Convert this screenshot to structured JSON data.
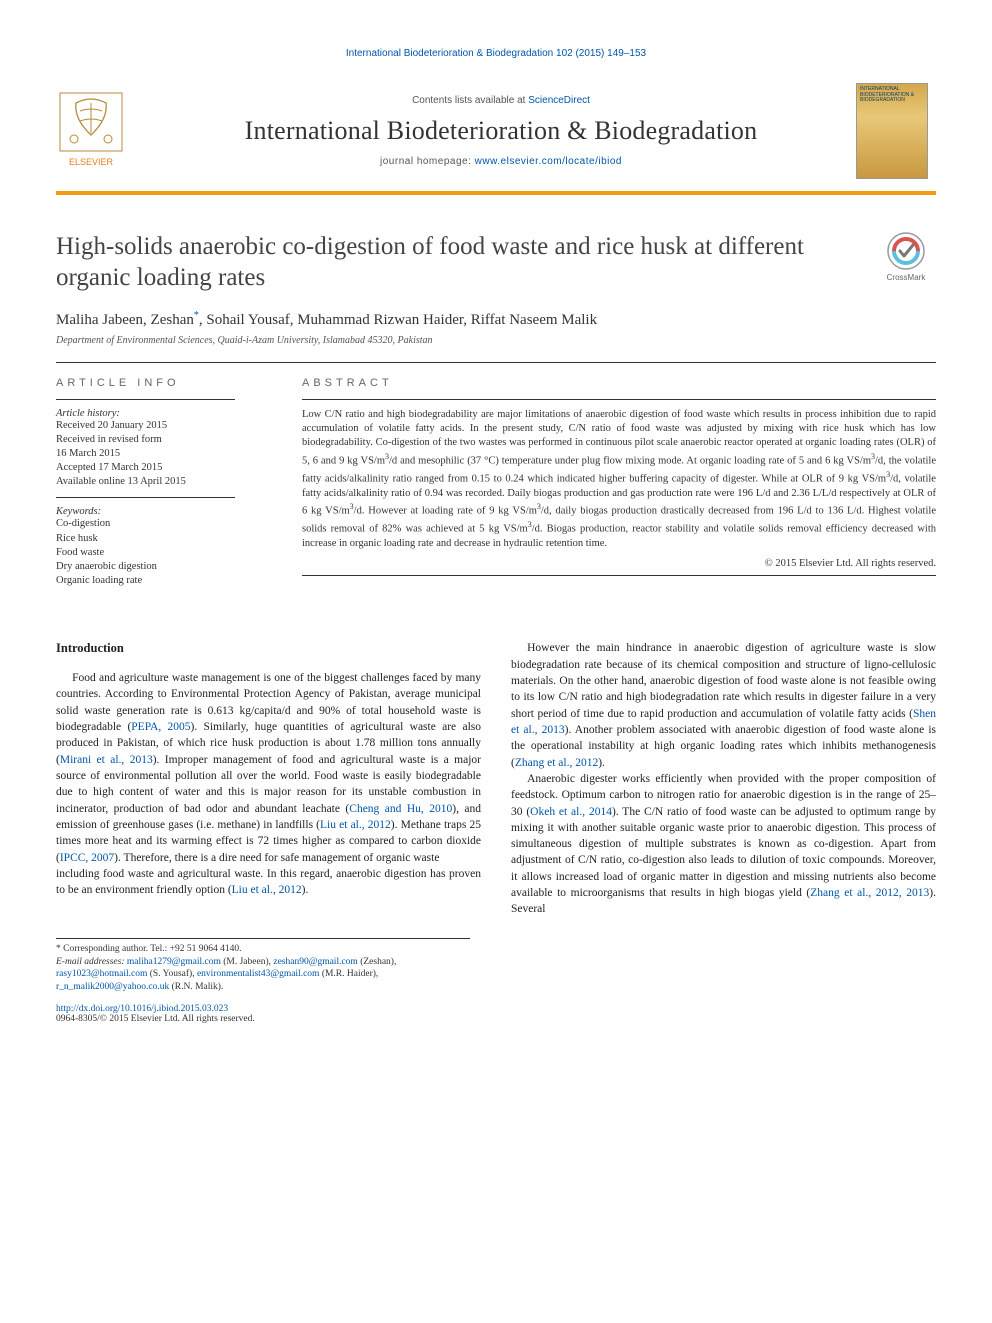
{
  "colors": {
    "link": "#0056a8",
    "accent_bar": "#f39c12",
    "text": "#333333",
    "muted": "#666666"
  },
  "typography": {
    "body_pt": 11.5,
    "abstract_pt": 10.5,
    "title_pt": 25,
    "journal_name_pt": 26
  },
  "running_head": "International Biodeterioration & Biodegradation 102 (2015) 149–153",
  "masthead": {
    "contents_prefix": "Contents lists available at ",
    "contents_link": "ScienceDirect",
    "journal": "International Biodeterioration & Biodegradation",
    "homepage_prefix": "journal homepage: ",
    "homepage_url": "www.elsevier.com/locate/ibiod",
    "cover_text": "INTERNATIONAL BIODETERIORATION & BIODEGRADATION"
  },
  "title": "High-solids anaerobic co-digestion of food waste and rice husk at different organic loading rates",
  "crossmark": "CrossMark",
  "authors_html": "Maliha Jabeen, Zeshan<sup>*</sup>, Sohail Yousaf, Muhammad Rizwan Haider, Riffat Naseem Malik",
  "affiliation": "Department of Environmental Sciences, Quaid-i-Azam University, Islamabad 45320, Pakistan",
  "article_info": {
    "label": "ARTICLE INFO",
    "history_label": "Article history:",
    "received": "Received 20 January 2015",
    "revised1": "Received in revised form",
    "revised2": "16 March 2015",
    "accepted": "Accepted 17 March 2015",
    "online": "Available online 13 April 2015",
    "kw_label": "Keywords:",
    "keywords": [
      "Co-digestion",
      "Rice husk",
      "Food waste",
      "Dry anaerobic digestion",
      "Organic loading rate"
    ]
  },
  "abstract": {
    "label": "ABSTRACT",
    "text_html": "Low C/N ratio and high biodegradability are major limitations of anaerobic digestion of food waste which results in process inhibition due to rapid accumulation of volatile fatty acids. In the present study, C/N ratio of food waste was adjusted by mixing with rice husk which has low biodegradability. Co-digestion of the two wastes was performed in continuous pilot scale anaerobic reactor operated at organic loading rates (OLR) of 5, 6 and 9 kg VS/m<sup>3</sup>/d and mesophilic (37 °C) temperature under plug flow mixing mode. At organic loading rate of 5 and 6 kg VS/m<sup>3</sup>/d, the volatile fatty acids/alkalinity ratio ranged from 0.15 to 0.24 which indicated higher buffering capacity of digester. While at OLR of 9 kg VS/m<sup>3</sup>/d, volatile fatty acids/alkalinity ratio of 0.94 was recorded. Daily biogas production and gas production rate were 196 L/d and 2.36 L/L/d respectively at OLR of 6 kg VS/m<sup>3</sup>/d. However at loading rate of 9 kg VS/m<sup>3</sup>/d, daily biogas production drastically decreased from 196 L/d to 136 L/d. Highest volatile solids removal of 82% was achieved at 5 kg VS/m<sup>3</sup>/d. Biogas production, reactor stability and volatile solids removal efficiency decreased with increase in organic loading rate and decrease in hydraulic retention time.",
    "copyright": "© 2015 Elsevier Ltd. All rights reserved."
  },
  "intro": {
    "heading": "Introduction",
    "p1_html": "Food and agriculture waste management is one of the biggest challenges faced by many countries. According to Environmental Protection Agency of Pakistan, average municipal solid waste generation rate is 0.613 kg/capita/d and 90% of total household waste is biodegradable (<a href='#' data-name='cite-pepa-2005' data-interactable='true'>PEPA, 2005</a>). Similarly, huge quantities of agricultural waste are also produced in Pakistan, of which rice husk production is about 1.78 million tons annually (<a href='#' data-name='cite-mirani-2013' data-interactable='true'>Mirani et al., 2013</a>). Improper management of food and agricultural waste is a major source of environmental pollution all over the world. Food waste is easily biodegradable due to high content of water and this is major reason for its unstable combustion in incinerator, production of bad odor and abundant leachate (<a href='#' data-name='cite-cheng-hu-2010' data-interactable='true'>Cheng and Hu, 2010</a>), and emission of greenhouse gases (i.e. methane) in landfills (<a href='#' data-name='cite-liu-2012a' data-interactable='true'>Liu et al., 2012</a>). Methane traps 25 times more heat and its warming effect is 72 times higher as compared to carbon dioxide (<a href='#' data-name='cite-ipcc-2007' data-interactable='true'>IPCC, 2007</a>). Therefore, there is a dire need for safe management of organic waste",
    "p2_html": "including food waste and agricultural waste. In this regard, anaerobic digestion has proven to be an environment friendly option (<a href='#' data-name='cite-liu-2012b' data-interactable='true'>Liu et al., 2012</a>).",
    "p3_html": "However the main hindrance in anaerobic digestion of agriculture waste is slow biodegradation rate because of its chemical composition and structure of ligno-cellulosic materials. On the other hand, anaerobic digestion of food waste alone is not feasible owing to its low C/N ratio and high biodegradation rate which results in digester failure in a very short period of time due to rapid production and accumulation of volatile fatty acids (<a href='#' data-name='cite-shen-2013' data-interactable='true'>Shen et al., 2013</a>). Another problem associated with anaerobic digestion of food waste alone is the operational instability at high organic loading rates which inhibits methanogenesis (<a href='#' data-name='cite-zhang-2012a' data-interactable='true'>Zhang et al., 2012</a>).",
    "p4_html": "Anaerobic digester works efficiently when provided with the proper composition of feedstock. Optimum carbon to nitrogen ratio for anaerobic digestion is in the range of 25–30 (<a href='#' data-name='cite-okeh-2014' data-interactable='true'>Okeh et al., 2014</a>). The C/N ratio of food waste can be adjusted to optimum range by mixing it with another suitable organic waste prior to anaerobic digestion. This process of simultaneous digestion of multiple substrates is known as co-digestion. Apart from adjustment of C/N ratio, co-digestion also leads to dilution of toxic compounds. Moreover, it allows increased load of organic matter in digestion and missing nutrients also become available to microorganisms that results in high biogas yield (<a href='#' data-name='cite-zhang-2012-2013' data-interactable='true'>Zhang et al., 2012, 2013</a>). Several"
  },
  "footnotes": {
    "corr": "* Corresponding author. Tel.: +92 51 9064 4140.",
    "email_label": "E-mail addresses:",
    "emails_html": " <a href='#' data-name='email-jabeen' data-interactable='true'>maliha1279@gmail.com</a> (M. Jabeen), <a href='#' data-name='email-zeshan' data-interactable='true'>zeshan90@gmail.com</a> (Zeshan), <a href='#' data-name='email-yousaf' data-interactable='true'>rasy1023@hotmail.com</a> (S. Yousaf), <a href='#' data-name='email-haider' data-interactable='true'>environmentalist43@gmail.com</a> (M.R. Haider), <a href='#' data-name='email-malik' data-interactable='true'>r_n_malik2000@yahoo.co.uk</a> (R.N. Malik)."
  },
  "doi": {
    "url": "http://dx.doi.org/10.1016/j.ibiod.2015.03.023",
    "issn_line": "0964-8305/© 2015 Elsevier Ltd. All rights reserved."
  }
}
